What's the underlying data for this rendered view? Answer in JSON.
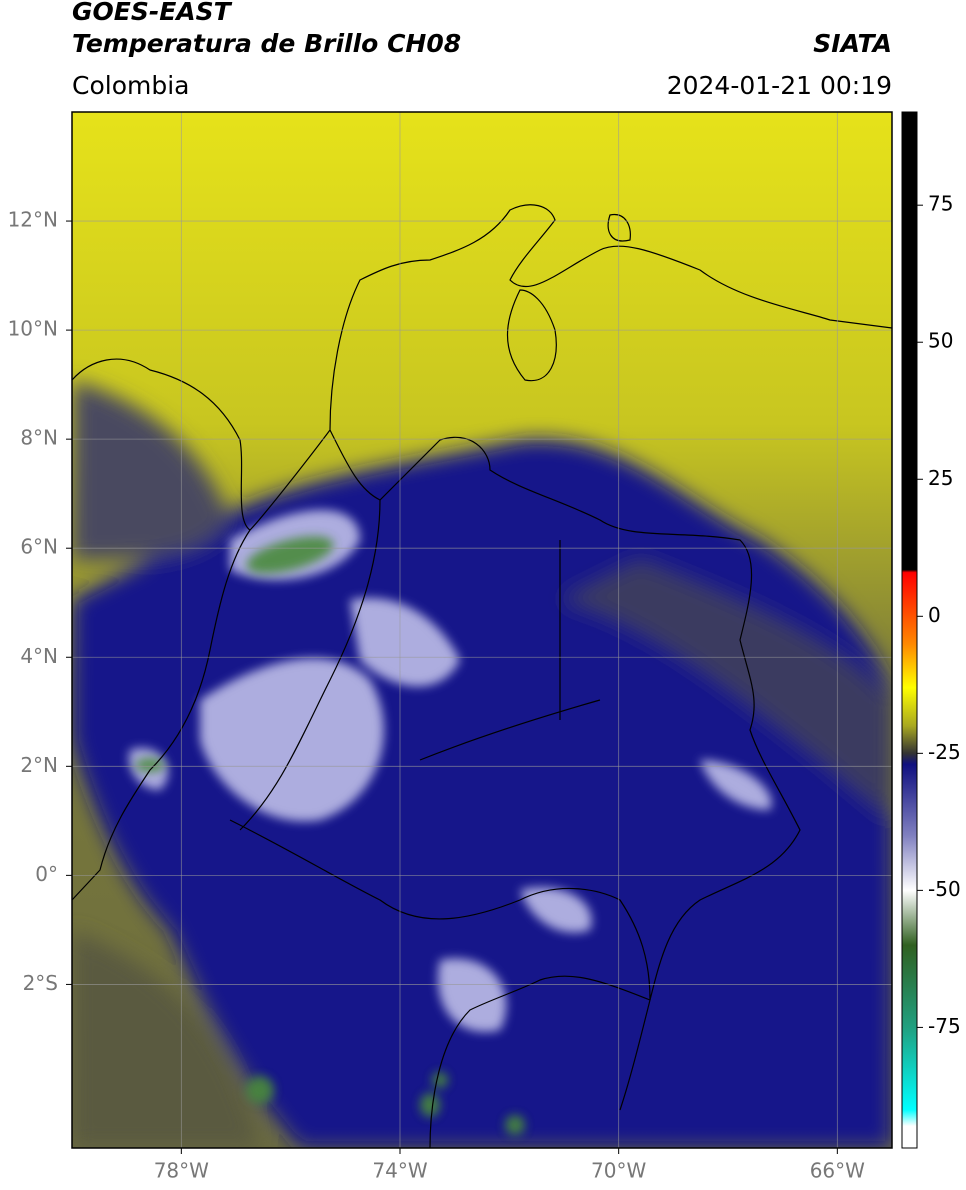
{
  "header": {
    "title": "GOES-EAST",
    "subtitle": "Temperatura de Brillo CH08",
    "source": "SIATA",
    "region": "Colombia",
    "datetime": "2024-01-21 00:19"
  },
  "map": {
    "xlim": [
      -80,
      -65
    ],
    "ylim": [
      -5,
      14
    ],
    "grid": true,
    "xticks": [
      {
        "value": -78,
        "label": "78°W"
      },
      {
        "value": -74,
        "label": "74°W"
      },
      {
        "value": -70,
        "label": "70°W"
      },
      {
        "value": -66,
        "label": "66°W"
      }
    ],
    "yticks": [
      {
        "value": 12,
        "label": "12°N"
      },
      {
        "value": 10,
        "label": "10°N"
      },
      {
        "value": 8,
        "label": "8°N"
      },
      {
        "value": 6,
        "label": "6°N"
      },
      {
        "value": 4,
        "label": "4°N"
      },
      {
        "value": 2,
        "label": "2°N"
      },
      {
        "value": 0,
        "label": "0°"
      },
      {
        "value": -2,
        "label": "2°S"
      }
    ]
  },
  "colorbar": {
    "lim": [
      -97,
      92
    ],
    "ticks": [
      75,
      50,
      25,
      0,
      -25,
      -50,
      -75
    ],
    "stops": [
      {
        "value": 92,
        "color": "#000000"
      },
      {
        "value": 8.5,
        "color": "#000000"
      },
      {
        "value": 8,
        "color": "#ff0000"
      },
      {
        "value": -5,
        "color": "#ff8800"
      },
      {
        "value": -13,
        "color": "#ffff00"
      },
      {
        "value": -20,
        "color": "#a8a820"
      },
      {
        "value": -25,
        "color": "#333333"
      },
      {
        "value": -27,
        "color": "#101080"
      },
      {
        "value": -40,
        "color": "#8080c0"
      },
      {
        "value": -50,
        "color": "#ffffff"
      },
      {
        "value": -60,
        "color": "#306020"
      },
      {
        "value": -75,
        "color": "#20a080"
      },
      {
        "value": -90,
        "color": "#00ffff"
      },
      {
        "value": -93,
        "color": "#ffffff"
      },
      {
        "value": -97,
        "color": "#ffffff"
      }
    ]
  }
}
